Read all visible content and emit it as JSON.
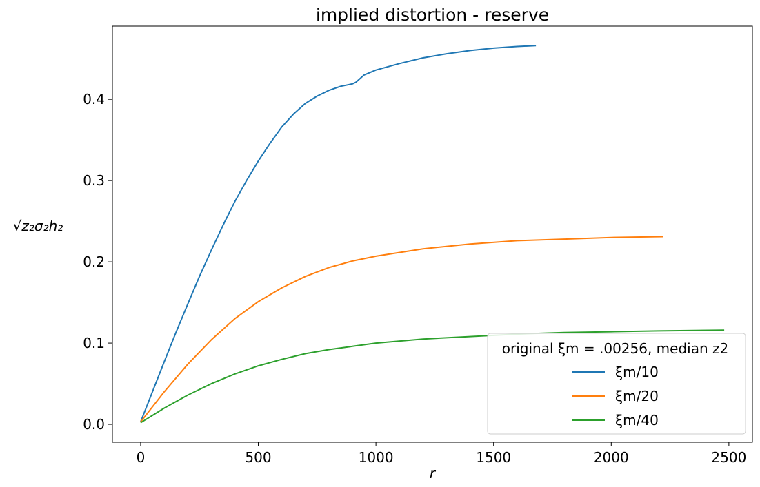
{
  "chart_data": {
    "type": "line",
    "title": "implied distortion - reserve",
    "xlabel": "r",
    "ylabel": "√z₂σ₂h₂",
    "xlim": [
      -120,
      2600
    ],
    "ylim": [
      -0.022,
      0.49
    ],
    "xticks": [
      0,
      500,
      1000,
      1500,
      2000,
      2500
    ],
    "yticks": [
      0.0,
      0.1,
      0.2,
      0.3,
      0.4
    ],
    "xtick_labels": [
      "0",
      "500",
      "1000",
      "1500",
      "2000",
      "2500"
    ],
    "ytick_labels": [
      "0.0",
      "0.1",
      "0.2",
      "0.3",
      "0.4"
    ],
    "grid": false,
    "legend": {
      "placement": "lower-right",
      "title": "original ξm = .00256, median z2"
    },
    "series": [
      {
        "name": "ξm/10",
        "color": "#1f77b4",
        "x": [
          0,
          50,
          100,
          150,
          200,
          250,
          300,
          350,
          400,
          450,
          500,
          550,
          600,
          650,
          700,
          750,
          800,
          850,
          900,
          915,
          950,
          1000,
          1100,
          1200,
          1300,
          1400,
          1500,
          1600,
          1680
        ],
        "y": [
          0.003,
          0.04,
          0.077,
          0.113,
          0.148,
          0.182,
          0.214,
          0.245,
          0.274,
          0.3,
          0.324,
          0.346,
          0.366,
          0.382,
          0.395,
          0.404,
          0.411,
          0.416,
          0.419,
          0.421,
          0.43,
          0.436,
          0.444,
          0.451,
          0.456,
          0.46,
          0.463,
          0.465,
          0.466
        ]
      },
      {
        "name": "ξm/20",
        "color": "#ff7f0e",
        "x": [
          0,
          100,
          200,
          300,
          400,
          500,
          600,
          700,
          800,
          900,
          1000,
          1200,
          1400,
          1600,
          1800,
          2000,
          2220
        ],
        "y": [
          0.003,
          0.04,
          0.074,
          0.104,
          0.13,
          0.151,
          0.168,
          0.182,
          0.193,
          0.201,
          0.207,
          0.216,
          0.222,
          0.226,
          0.228,
          0.23,
          0.231
        ]
      },
      {
        "name": "ξm/40",
        "color": "#2ca02c",
        "x": [
          0,
          100,
          200,
          300,
          400,
          500,
          600,
          700,
          800,
          900,
          1000,
          1200,
          1400,
          1600,
          1800,
          2000,
          2200,
          2480
        ],
        "y": [
          0.002,
          0.02,
          0.036,
          0.05,
          0.062,
          0.072,
          0.08,
          0.087,
          0.092,
          0.096,
          0.1,
          0.105,
          0.108,
          0.111,
          0.113,
          0.114,
          0.115,
          0.116
        ]
      }
    ]
  }
}
